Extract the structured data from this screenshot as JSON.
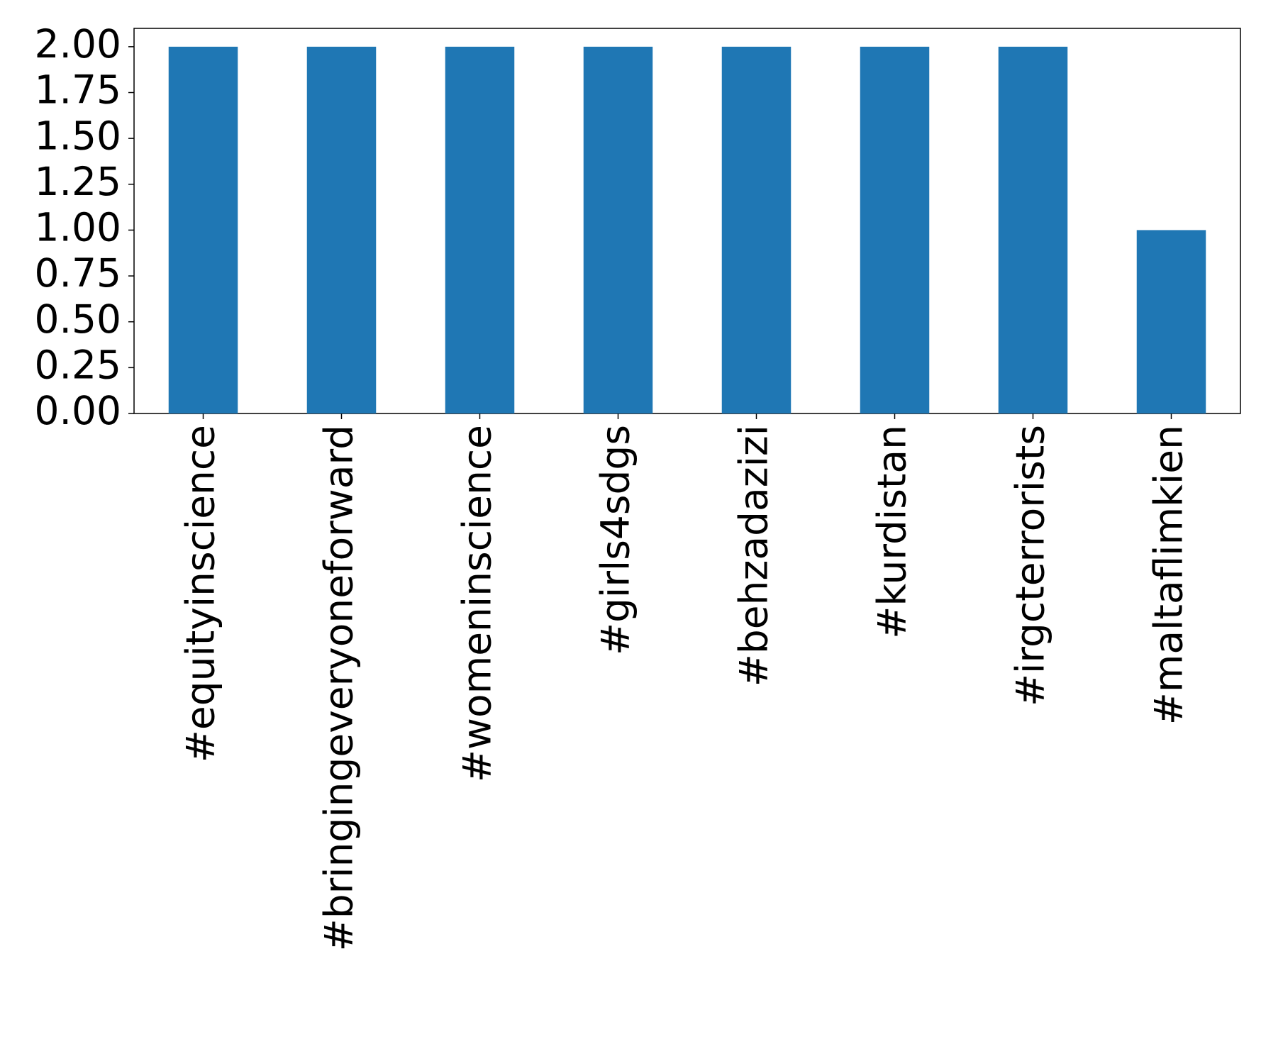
{
  "chart_data": {
    "type": "bar",
    "categories": [
      "#equityinscience",
      "#bringingeveryoneforward",
      "#womeninscience",
      "#girls4sdgs",
      "#behzadazizi",
      "#kurdistan",
      "#irgcterrorists",
      "#maltaflimkien"
    ],
    "values": [
      2,
      2,
      2,
      2,
      2,
      2,
      2,
      1
    ],
    "color": "#1f77b4",
    "ylim": [
      0,
      2.1
    ],
    "yticks": [
      {
        "value": 0,
        "label": "0.00"
      },
      0.25,
      {
        "value": 0.5,
        "label": "0.50"
      },
      0.75,
      {
        "value": 1,
        "label": "1.00"
      },
      1.25,
      {
        "value": 1.5,
        "label": "1.50"
      },
      1.75,
      {
        "value": 2,
        "label": "2.00"
      }
    ],
    "grid": false
  }
}
